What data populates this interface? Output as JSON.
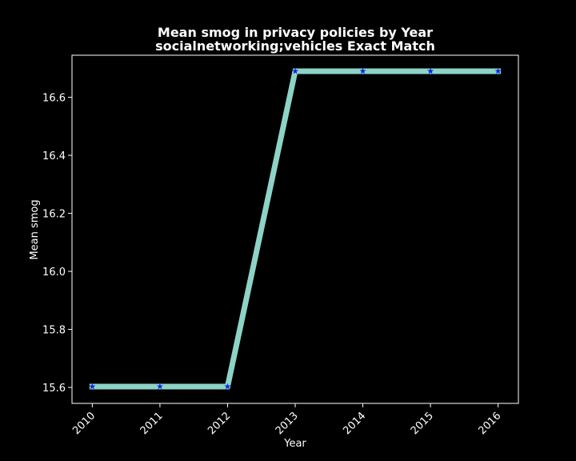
{
  "chart_data": {
    "type": "line",
    "title": "Mean smog in privacy policies by Year",
    "subtitle": "socialnetworking;vehicles Exact Match",
    "xlabel": "Year",
    "ylabel": "Mean smog",
    "x": [
      2010,
      2011,
      2012,
      2013,
      2014,
      2015,
      2016
    ],
    "x_tick_labels": [
      "2010",
      "2011",
      "2012",
      "2013",
      "2014",
      "2015",
      "2016"
    ],
    "y_ticks": [
      15.6,
      15.8,
      16.0,
      16.2,
      16.4,
      16.6
    ],
    "y_tick_labels": [
      "15.6",
      "15.8",
      "16.0",
      "16.2",
      "16.4",
      "16.6"
    ],
    "xlim": [
      2009.7,
      2016.3
    ],
    "ylim": [
      15.545,
      16.745
    ],
    "series": [
      {
        "values": [
          15.603,
          15.603,
          15.603,
          16.69,
          16.69,
          16.69,
          16.69
        ],
        "line_color": "#8dd3c7",
        "marker_color": "#0b22f0",
        "marker": "star"
      }
    ],
    "grid": false,
    "legend": "none",
    "background_color": "#000000",
    "axis_color": "#ffffff"
  }
}
